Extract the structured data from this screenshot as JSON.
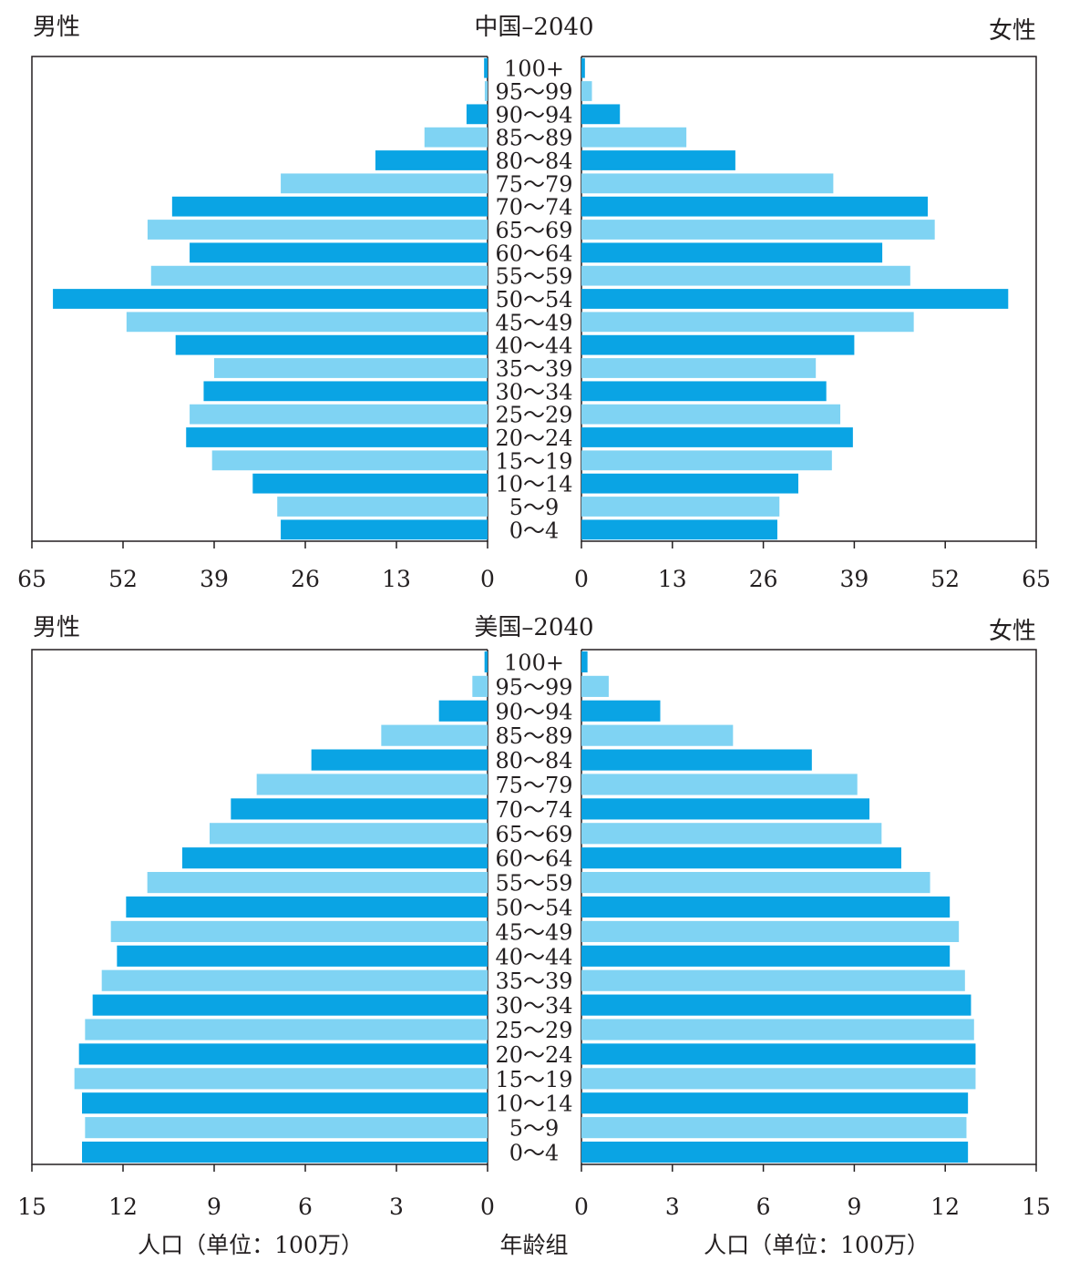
{
  "colors": {
    "dark_bar": "#0aa4e4",
    "light_bar": "#7fd3f3",
    "frame": "#231f20"
  },
  "footer": {
    "left_axis_label": "人口（单位：100万）",
    "center_axis_label": "年龄组",
    "right_axis_label": "人口（单位：100万）"
  },
  "chart_data": [
    {
      "type": "bar",
      "title": "中国–2040",
      "left_label": "男性",
      "right_label": "女性",
      "xlim": [
        0,
        65
      ],
      "ticks": [
        0,
        13,
        26,
        39,
        52,
        65
      ],
      "categories": [
        "100+",
        "95～99",
        "90～94",
        "85～89",
        "80～84",
        "75～79",
        "70～74",
        "65～69",
        "60～64",
        "55～59",
        "50～54",
        "45～49",
        "40～44",
        "35～39",
        "30～34",
        "25～29",
        "20～24",
        "15～19",
        "10～14",
        "5～9",
        "0～4"
      ],
      "series": [
        {
          "name": "男性",
          "values": [
            0.5,
            0.4,
            3,
            9,
            16,
            29.5,
            45,
            48.5,
            42.5,
            48,
            62,
            51.5,
            44.5,
            39,
            40.5,
            42.5,
            43,
            39.3,
            33.5,
            30,
            29.5
          ]
        },
        {
          "name": "女性",
          "values": [
            0.5,
            1.5,
            5.5,
            15,
            22,
            36,
            49.5,
            50.5,
            43,
            47,
            61,
            47.5,
            39,
            33.5,
            35,
            37,
            38.8,
            35.8,
            31,
            28.3,
            28
          ]
        }
      ]
    },
    {
      "type": "bar",
      "title": "美国–2040",
      "left_label": "男性",
      "right_label": "女性",
      "xlim": [
        0,
        15
      ],
      "ticks": [
        0,
        3,
        6,
        9,
        12,
        15
      ],
      "categories": [
        "100+",
        "95～99",
        "90～94",
        "85～89",
        "80～84",
        "75～79",
        "70～74",
        "65～69",
        "60～64",
        "55～59",
        "50～54",
        "45～49",
        "40～44",
        "35～39",
        "30～34",
        "25～29",
        "20～24",
        "15～19",
        "10～14",
        "5～9",
        "0～4"
      ],
      "series": [
        {
          "name": "男性",
          "values": [
            0.1,
            0.5,
            1.6,
            3.5,
            5.8,
            7.6,
            8.45,
            9.15,
            10.05,
            11.2,
            11.9,
            12.4,
            12.2,
            12.7,
            13.0,
            13.25,
            13.45,
            13.6,
            13.35,
            13.25,
            13.35
          ]
        },
        {
          "name": "女性",
          "values": [
            0.2,
            0.9,
            2.6,
            5.0,
            7.6,
            9.1,
            9.5,
            9.9,
            10.55,
            11.5,
            12.15,
            12.45,
            12.15,
            12.65,
            12.85,
            12.95,
            13.0,
            13.0,
            12.75,
            12.7,
            12.75
          ]
        }
      ]
    }
  ]
}
